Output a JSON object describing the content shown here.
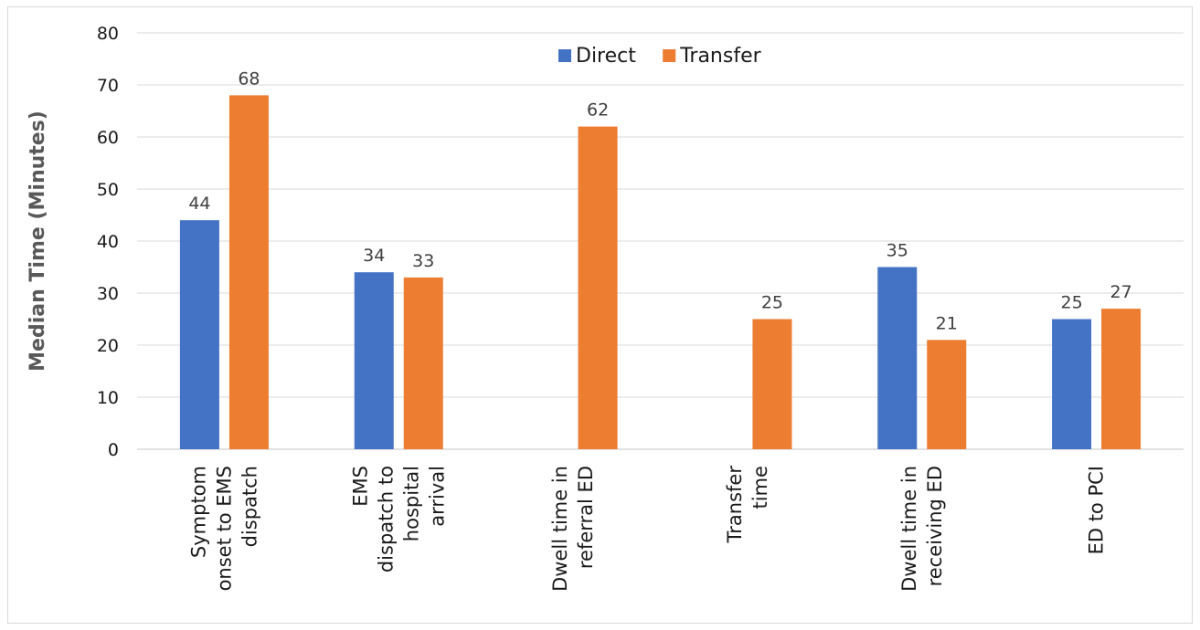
{
  "chart_data": {
    "type": "bar",
    "categories": [
      [
        "Symptom",
        "onset to EMS",
        "dispatch"
      ],
      [
        "EMS",
        "dispatch to",
        "hospital",
        "arrival"
      ],
      [
        "Dwell time in",
        "referral ED"
      ],
      [
        "Transfer",
        "time"
      ],
      [
        "Dwell time in",
        "receiving ED"
      ],
      [
        "ED to PCI"
      ]
    ],
    "series": [
      {
        "name": "Direct",
        "color": "#4472c4",
        "values": [
          44,
          34,
          null,
          null,
          35,
          25
        ]
      },
      {
        "name": "Transfer",
        "color": "#ed7d31",
        "values": [
          68,
          33,
          62,
          25,
          21,
          27
        ]
      }
    ],
    "ylabel": "Median Time (Minutes)",
    "ylim": [
      0,
      80
    ],
    "yticks": [
      0,
      10,
      20,
      30,
      40,
      50,
      60,
      70,
      80
    ],
    "grid": true,
    "legend_position": "top-center",
    "data_labels": true
  }
}
